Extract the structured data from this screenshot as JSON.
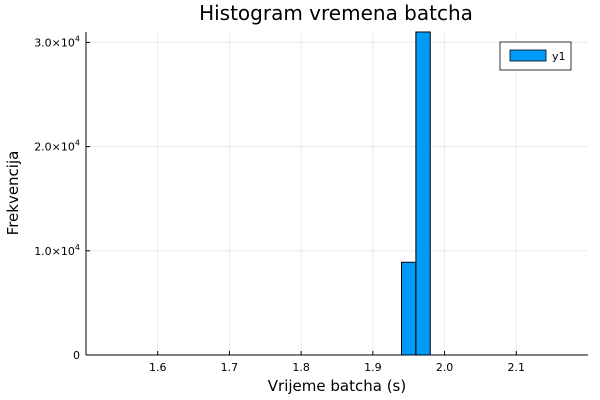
{
  "chart_data": {
    "type": "bar",
    "title": "Histogram vremena batcha",
    "xlabel": "Vrijeme batcha (s)",
    "ylabel": "Frekvencija",
    "xlim": [
      1.5,
      2.2
    ],
    "ylim": [
      0,
      31000
    ],
    "x_ticks": [
      1.6,
      1.7,
      1.8,
      1.9,
      2.0,
      2.1
    ],
    "x_tick_labels": [
      "1.6",
      "1.7",
      "1.8",
      "1.9",
      "2.0",
      "2.1"
    ],
    "y_ticks": [
      0,
      10000,
      20000,
      30000
    ],
    "y_tick_labels": [
      {
        "mantissa": "0",
        "exponent": ""
      },
      {
        "mantissa": "1.0×10",
        "exponent": "4"
      },
      {
        "mantissa": "2.0×10",
        "exponent": "4"
      },
      {
        "mantissa": "3.0×10",
        "exponent": "4"
      }
    ],
    "grid": true,
    "legend_position": "top-right",
    "series": [
      {
        "name": "y1",
        "color": "#009af9",
        "bins": [
          {
            "x0": 1.94,
            "x1": 1.96,
            "value": 8900
          },
          {
            "x0": 1.96,
            "x1": 1.98,
            "value": 31000
          }
        ]
      }
    ]
  }
}
